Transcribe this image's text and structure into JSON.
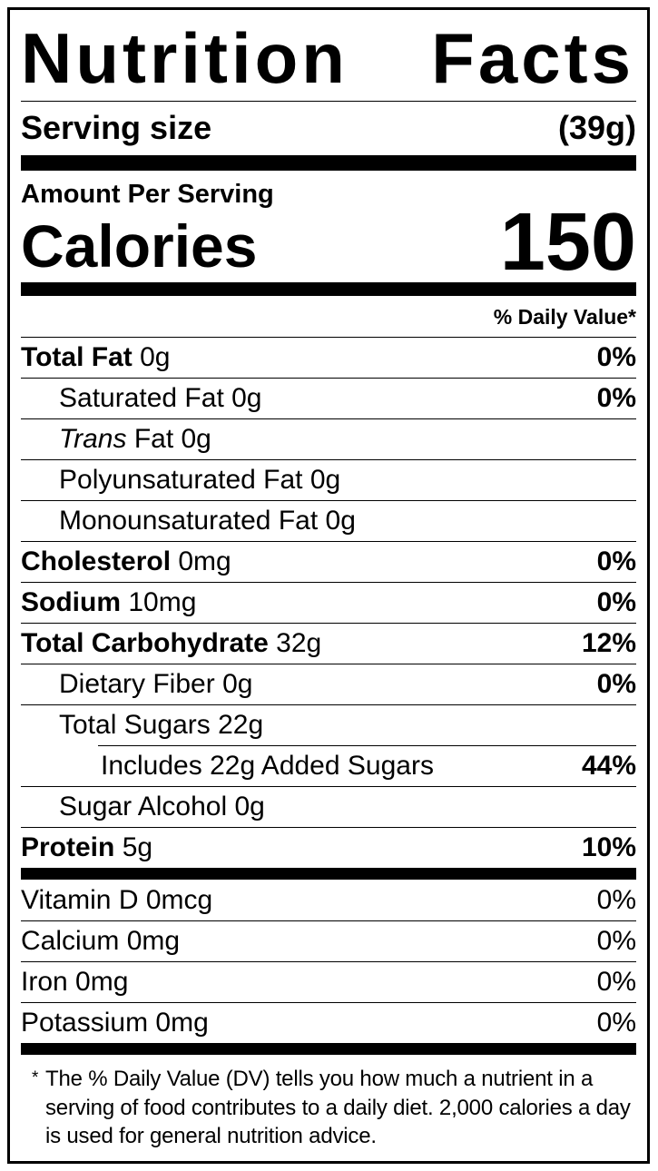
{
  "colors": {
    "ink": "#000000",
    "paper": "#ffffff"
  },
  "title": {
    "word1": "Nutrition",
    "word2": "Facts"
  },
  "serving": {
    "label": "Serving size",
    "value": "(39g)"
  },
  "calories_section": {
    "heading": "Amount Per Serving",
    "label": "Calories",
    "value": "150"
  },
  "daily_value_header": "% Daily Value*",
  "nutrients": [
    {
      "name": "Total Fat",
      "amount": "0g",
      "dv": "0%"
    },
    {
      "name": "Saturated Fat",
      "amount": "0g",
      "dv": "0%"
    },
    {
      "name": "Trans",
      "amount": "Fat 0g",
      "dv": ""
    },
    {
      "name": "Polyunsaturated Fat",
      "amount": "0g",
      "dv": ""
    },
    {
      "name": "Monounsaturated Fat",
      "amount": "0g",
      "dv": ""
    },
    {
      "name": "Cholesterol",
      "amount": "0mg",
      "dv": "0%"
    },
    {
      "name": "Sodium",
      "amount": "10mg",
      "dv": "0%"
    },
    {
      "name": "Total Carbohydrate",
      "amount": "32g",
      "dv": "12%"
    },
    {
      "name": "Dietary Fiber",
      "amount": "0g",
      "dv": "0%"
    },
    {
      "name": "Total Sugars",
      "amount": "22g",
      "dv": ""
    },
    {
      "name": "Includes 22g Added Sugars",
      "amount": "",
      "dv": "44%"
    },
    {
      "name": "Sugar Alcohol",
      "amount": "0g",
      "dv": ""
    },
    {
      "name": "Protein",
      "amount": "5g",
      "dv": "10%"
    }
  ],
  "vitamins": [
    {
      "name": "Vitamin D",
      "amount": "0mcg",
      "dv": "0%"
    },
    {
      "name": "Calcium",
      "amount": "0mg",
      "dv": "0%"
    },
    {
      "name": "Iron",
      "amount": "0mg",
      "dv": "0%"
    },
    {
      "name": "Potassium",
      "amount": "0mg",
      "dv": "0%"
    }
  ],
  "footnote": {
    "marker": "*",
    "text": "The % Daily Value (DV) tells you how much a nutrient in a serving of food contributes to a daily diet. 2,000 calories a day is used for general nutrition advice."
  }
}
